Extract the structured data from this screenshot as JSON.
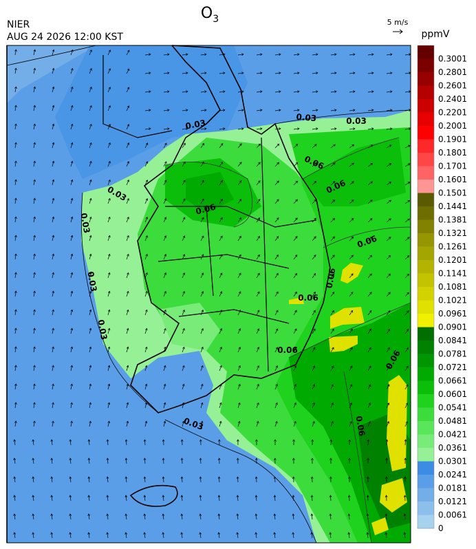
{
  "header": {
    "title": {
      "main": "O",
      "sub": "3"
    },
    "source": "NIER",
    "datetime": "AUG 24 2026 12:00 KST",
    "wind_scale": "5 m/s"
  },
  "colorbar": {
    "unit": "ppmV",
    "levels": [
      "0.3001",
      "0.2801",
      "0.2601",
      "0.2401",
      "0.2201",
      "0.2001",
      "0.1901",
      "0.1801",
      "0.1701",
      "0.1601",
      "0.1501",
      "0.1441",
      "0.1381",
      "0.1321",
      "0.1261",
      "0.1201",
      "0.1141",
      "0.1081",
      "0.1021",
      "0.0961",
      "0.0901",
      "0.0841",
      "0.0781",
      "0.0721",
      "0.0661",
      "0.0601",
      "0.0541",
      "0.0481",
      "0.0421",
      "0.0361",
      "0.0301",
      "0.0241",
      "0.0181",
      "0.0121",
      "0.0061",
      "0"
    ],
    "colors": [
      "#640000",
      "#7d0000",
      "#960000",
      "#b40000",
      "#cd0000",
      "#e60000",
      "#ff0000",
      "#ff2828",
      "#ff4646",
      "#ff6464",
      "#ff9696",
      "#5a5a00",
      "#6e6e00",
      "#828200",
      "#969600",
      "#a5a500",
      "#b4b400",
      "#c3c300",
      "#d2d200",
      "#e1e100",
      "#f0f000",
      "#006e00",
      "#008200",
      "#009600",
      "#00aa00",
      "#0abe0a",
      "#1ed21e",
      "#3cdc3c",
      "#5ae65a",
      "#78eb78",
      "#96f096",
      "#3c8ce6",
      "#5a9ee8",
      "#74aee8",
      "#8cbfec",
      "#a6d2f0"
    ]
  },
  "contours": {
    "labels": [
      "0.03",
      "0.03",
      "0.03",
      "0.03",
      "0.03",
      "0.03",
      "0.03",
      "0.03",
      "0.06",
      "0.06",
      "0.06",
      "0.06",
      "0.06",
      "0.06",
      "0.06",
      "0.06",
      "0.06"
    ]
  }
}
